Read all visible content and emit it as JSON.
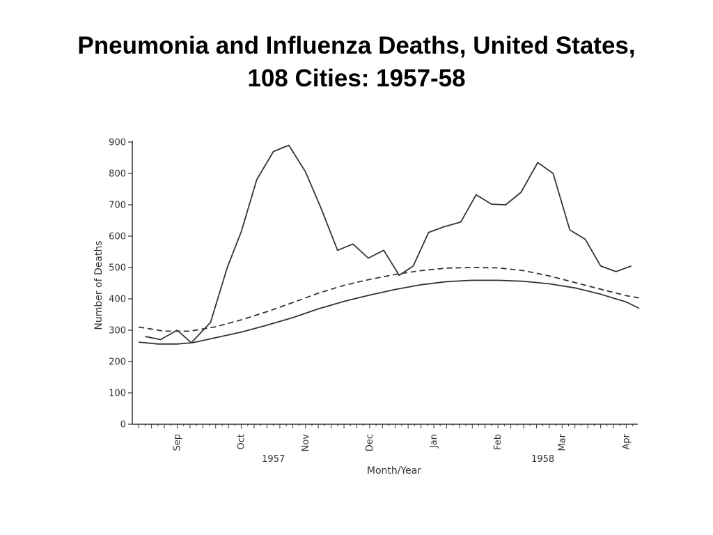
{
  "title_line1": "Pneumonia and Influenza Deaths, United States,",
  "title_line2": "108 Cities: 1957-58",
  "chart_data": {
    "type": "line",
    "title": "Pneumonia and Influenza Deaths, United States, 108 Cities: 1957-58",
    "xlabel": "Month/Year",
    "ylabel": "Number of Deaths",
    "ylim": [
      0,
      900
    ],
    "yticks": [
      0,
      100,
      200,
      300,
      400,
      500,
      600,
      700,
      800,
      900
    ],
    "week_range": [
      0,
      36
    ],
    "months": [
      {
        "label": "Sep",
        "week": 3.0
      },
      {
        "label": "Oct",
        "week": 8.0
      },
      {
        "label": "Nov",
        "week": 13.0
      },
      {
        "label": "Dec",
        "week": 18.0
      },
      {
        "label": "Jan",
        "week": 23.0
      },
      {
        "label": "Feb",
        "week": 28.0
      },
      {
        "label": "Mar",
        "week": 33.0
      },
      {
        "label": "Apr",
        "week": 38.0
      }
    ],
    "years": [
      {
        "label": "1957",
        "week": 10.5
      },
      {
        "label": "1958",
        "week": 31.5
      }
    ],
    "series": [
      {
        "style": "solid-observed",
        "x": [
          0.5,
          1.7,
          3.0,
          4.1,
          5.6,
          6.9,
          8.0,
          9.2,
          10.5,
          11.7,
          13.0,
          14.2,
          15.5,
          16.7,
          17.9,
          19.1,
          20.3,
          21.4,
          22.6,
          23.8,
          25.1,
          26.3,
          27.5,
          28.6,
          29.8,
          31.1,
          32.3,
          33.6,
          34.8,
          36.0,
          37.2,
          38.4
        ],
        "y": [
          280,
          270,
          300,
          260,
          325,
          500,
          615,
          780,
          870,
          890,
          805,
          690,
          555,
          575,
          530,
          555,
          475,
          505,
          612,
          630,
          645,
          732,
          702,
          700,
          740,
          835,
          800,
          620,
          590,
          505,
          487,
          505
        ],
        "color": "#333333",
        "dash": false
      },
      {
        "style": "solid-baseline",
        "x": [
          0,
          1.5,
          3.0,
          4.2,
          6,
          8,
          10,
          12,
          14,
          16,
          18,
          20,
          22,
          24,
          26,
          28,
          30,
          32,
          34,
          36,
          38,
          39
        ],
        "y": [
          262,
          256,
          256,
          260,
          276,
          294,
          316,
          340,
          368,
          392,
          412,
          430,
          445,
          455,
          459,
          459,
          456,
          448,
          435,
          415,
          390,
          370
        ],
        "color": "#333333",
        "dash": false
      },
      {
        "style": "dashed-threshold",
        "x": [
          0,
          2,
          4,
          6,
          8,
          10,
          12,
          14,
          16,
          18,
          20,
          22,
          24,
          26,
          28,
          30,
          32,
          34,
          36,
          38,
          39
        ],
        "y": [
          310,
          297,
          297,
          311,
          333,
          359,
          388,
          418,
          443,
          462,
          478,
          490,
          498,
          500,
          499,
          490,
          473,
          452,
          431,
          410,
          403
        ],
        "color": "#333333",
        "dash": true
      }
    ]
  }
}
